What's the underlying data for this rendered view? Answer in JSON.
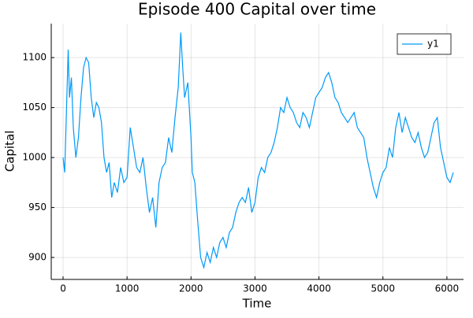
{
  "chart_data": {
    "type": "line",
    "title": "Episode 400 Capital over time",
    "x_label": "Time",
    "y_label": "Capital",
    "x": [
      0,
      25,
      50,
      80,
      100,
      130,
      160,
      200,
      240,
      280,
      320,
      360,
      400,
      440,
      480,
      520,
      560,
      600,
      640,
      680,
      720,
      760,
      800,
      850,
      900,
      950,
      1000,
      1050,
      1100,
      1150,
      1200,
      1250,
      1300,
      1350,
      1400,
      1450,
      1500,
      1550,
      1600,
      1650,
      1700,
      1750,
      1800,
      1840,
      1870,
      1900,
      1950,
      2000,
      2020,
      2060,
      2100,
      2150,
      2200,
      2250,
      2300,
      2350,
      2400,
      2450,
      2500,
      2550,
      2600,
      2650,
      2700,
      2750,
      2800,
      2850,
      2900,
      2950,
      3000,
      3050,
      3100,
      3150,
      3200,
      3250,
      3300,
      3350,
      3400,
      3450,
      3500,
      3550,
      3600,
      3650,
      3700,
      3750,
      3800,
      3850,
      3900,
      3950,
      4000,
      4050,
      4100,
      4150,
      4200,
      4250,
      4300,
      4350,
      4400,
      4450,
      4500,
      4550,
      4600,
      4650,
      4700,
      4750,
      4800,
      4850,
      4900,
      4950,
      5000,
      5050,
      5100,
      5150,
      5200,
      5250,
      5300,
      5350,
      5400,
      5450,
      5500,
      5550,
      5600,
      5650,
      5700,
      5750,
      5800,
      5850,
      5900,
      5950,
      6000,
      6050,
      6100
    ],
    "series": [
      {
        "name": "y1",
        "color": "#009af9",
        "values": [
          1000,
          985,
          1040,
          1108,
          1060,
          1080,
          1030,
          1000,
          1020,
          1060,
          1090,
          1100,
          1095,
          1060,
          1040,
          1055,
          1050,
          1035,
          1000,
          985,
          995,
          960,
          975,
          965,
          990,
          975,
          980,
          1030,
          1010,
          990,
          985,
          1000,
          970,
          945,
          960,
          930,
          975,
          990,
          995,
          1020,
          1005,
          1040,
          1070,
          1125,
          1090,
          1060,
          1075,
          1020,
          985,
          975,
          940,
          900,
          890,
          905,
          895,
          910,
          900,
          915,
          920,
          910,
          925,
          930,
          945,
          955,
          960,
          955,
          970,
          945,
          955,
          980,
          990,
          985,
          1000,
          1005,
          1015,
          1030,
          1050,
          1045,
          1060,
          1050,
          1045,
          1035,
          1030,
          1045,
          1040,
          1030,
          1045,
          1060,
          1065,
          1070,
          1080,
          1085,
          1075,
          1060,
          1055,
          1045,
          1040,
          1035,
          1040,
          1045,
          1030,
          1025,
          1020,
          1000,
          985,
          970,
          960,
          975,
          985,
          990,
          1010,
          1000,
          1030,
          1045,
          1025,
          1040,
          1030,
          1020,
          1015,
          1025,
          1010,
          1000,
          1005,
          1020,
          1035,
          1040,
          1010,
          995,
          980,
          975,
          985
        ]
      }
    ],
    "xlim": [
      -185,
      6260
    ],
    "ylim": [
      878,
      1134
    ],
    "xticks": [
      0,
      1000,
      2000,
      3000,
      4000,
      5000,
      6000
    ],
    "yticks": [
      900,
      950,
      1000,
      1050,
      1100
    ],
    "grid": true,
    "legend": "top-right"
  }
}
